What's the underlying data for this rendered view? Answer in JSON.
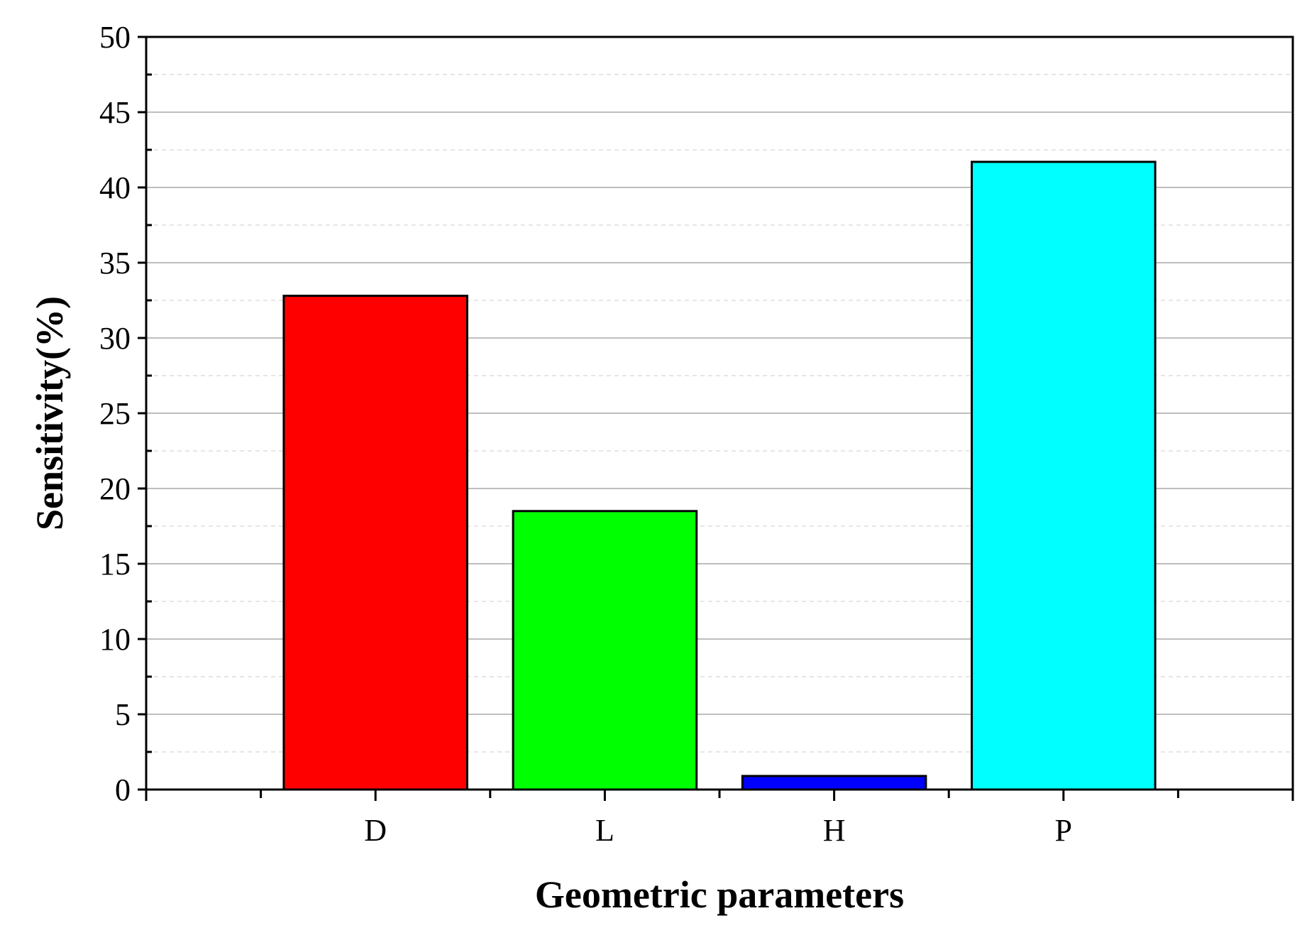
{
  "chart_data": {
    "type": "bar",
    "categories": [
      "D",
      "L",
      "H",
      "P"
    ],
    "values": [
      32.8,
      18.5,
      0.9,
      41.7
    ],
    "colors": [
      "#ff0000",
      "#00ff00",
      "#0000ff",
      "#00ffff"
    ],
    "xlabel": "Geometric parameters",
    "ylabel": "Sensitivity(%)",
    "ylim": [
      0,
      50
    ],
    "yticks": [
      "0",
      "5",
      "10",
      "15",
      "20",
      "25",
      "30",
      "35",
      "40",
      "45",
      "50"
    ],
    "grid": true,
    "legend": "none"
  }
}
